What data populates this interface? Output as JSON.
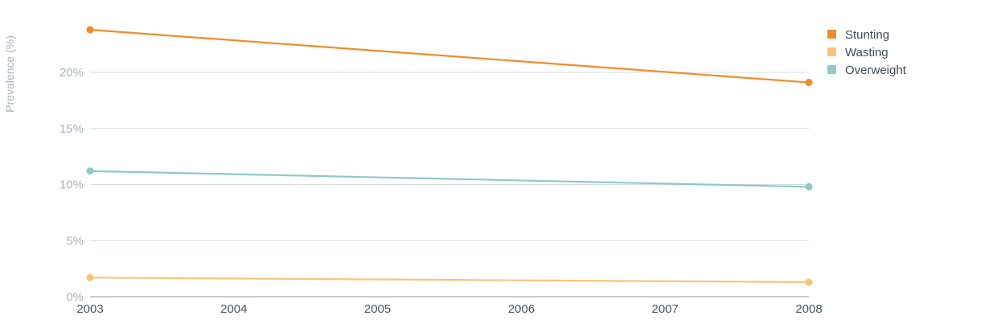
{
  "chart_data": {
    "type": "line",
    "title": "",
    "xlabel": "",
    "ylabel": "Prevalence (%)",
    "x": [
      2003,
      2008
    ],
    "x_ticks": [
      "2003",
      "2004",
      "2005",
      "2006",
      "2007",
      "2008"
    ],
    "xlim": [
      2003,
      2008
    ],
    "y_ticks": [
      "0%",
      "5%",
      "10%",
      "15%",
      "20%"
    ],
    "ylim": [
      0,
      25
    ],
    "grid": true,
    "legend_position": "top-right",
    "series": [
      {
        "name": "Stunting",
        "color": "#f28c28",
        "values": [
          23.8,
          19.1
        ]
      },
      {
        "name": "Wasting",
        "color": "#fbc47a",
        "values": [
          1.7,
          1.3
        ]
      },
      {
        "name": "Overweight",
        "color": "#8ecac6",
        "values": [
          11.2,
          9.8
        ]
      }
    ]
  }
}
